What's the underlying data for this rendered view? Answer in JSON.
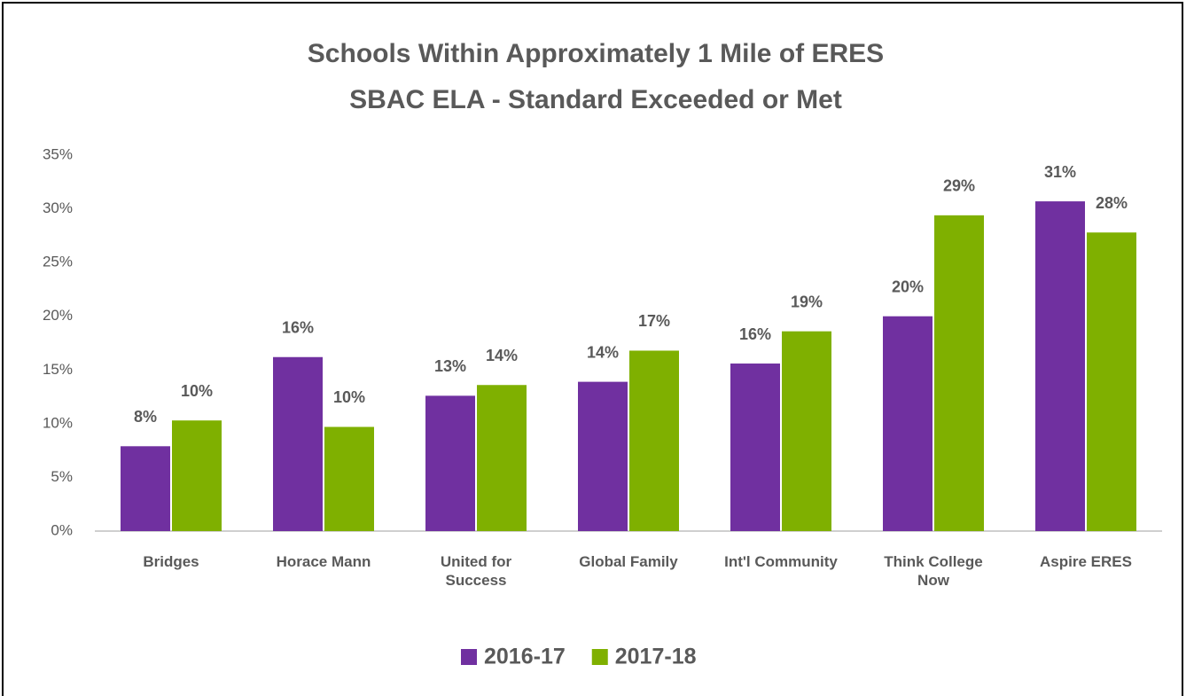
{
  "chart_data": {
    "type": "bar",
    "title": "Schools Within Approximately 1 Mile of ERES",
    "subtitle": "SBAC ELA - Standard Exceeded or Met",
    "categories": [
      "Bridges",
      "Horace Mann",
      "United for Success",
      "Global Family",
      "Int'l Community",
      "Think College Now",
      "Aspire ERES"
    ],
    "series": [
      {
        "name": "2016-17",
        "color": "#7030a0",
        "values": [
          7.9,
          16.2,
          12.6,
          13.9,
          15.6,
          20.0,
          30.7
        ],
        "value_labels": [
          "8%",
          "16%",
          "13%",
          "14%",
          "16%",
          "20%",
          "31%"
        ]
      },
      {
        "name": "2017-18",
        "color": "#7fb000",
        "values": [
          10.3,
          9.7,
          13.6,
          16.8,
          18.6,
          29.4,
          27.8
        ],
        "value_labels": [
          "10%",
          "10%",
          "14%",
          "17%",
          "19%",
          "29%",
          "28%"
        ]
      }
    ],
    "ylim": [
      0,
      35
    ],
    "yticks": [
      {
        "value": 0,
        "label": "0%"
      },
      {
        "value": 5,
        "label": "5%"
      },
      {
        "value": 10,
        "label": "10%"
      },
      {
        "value": 15,
        "label": "15%"
      },
      {
        "value": 20,
        "label": "20%"
      },
      {
        "value": 25,
        "label": "25%"
      },
      {
        "value": 30,
        "label": "30%"
      },
      {
        "value": 35,
        "label": "35%"
      }
    ],
    "grid": false,
    "legend": "bottom"
  }
}
